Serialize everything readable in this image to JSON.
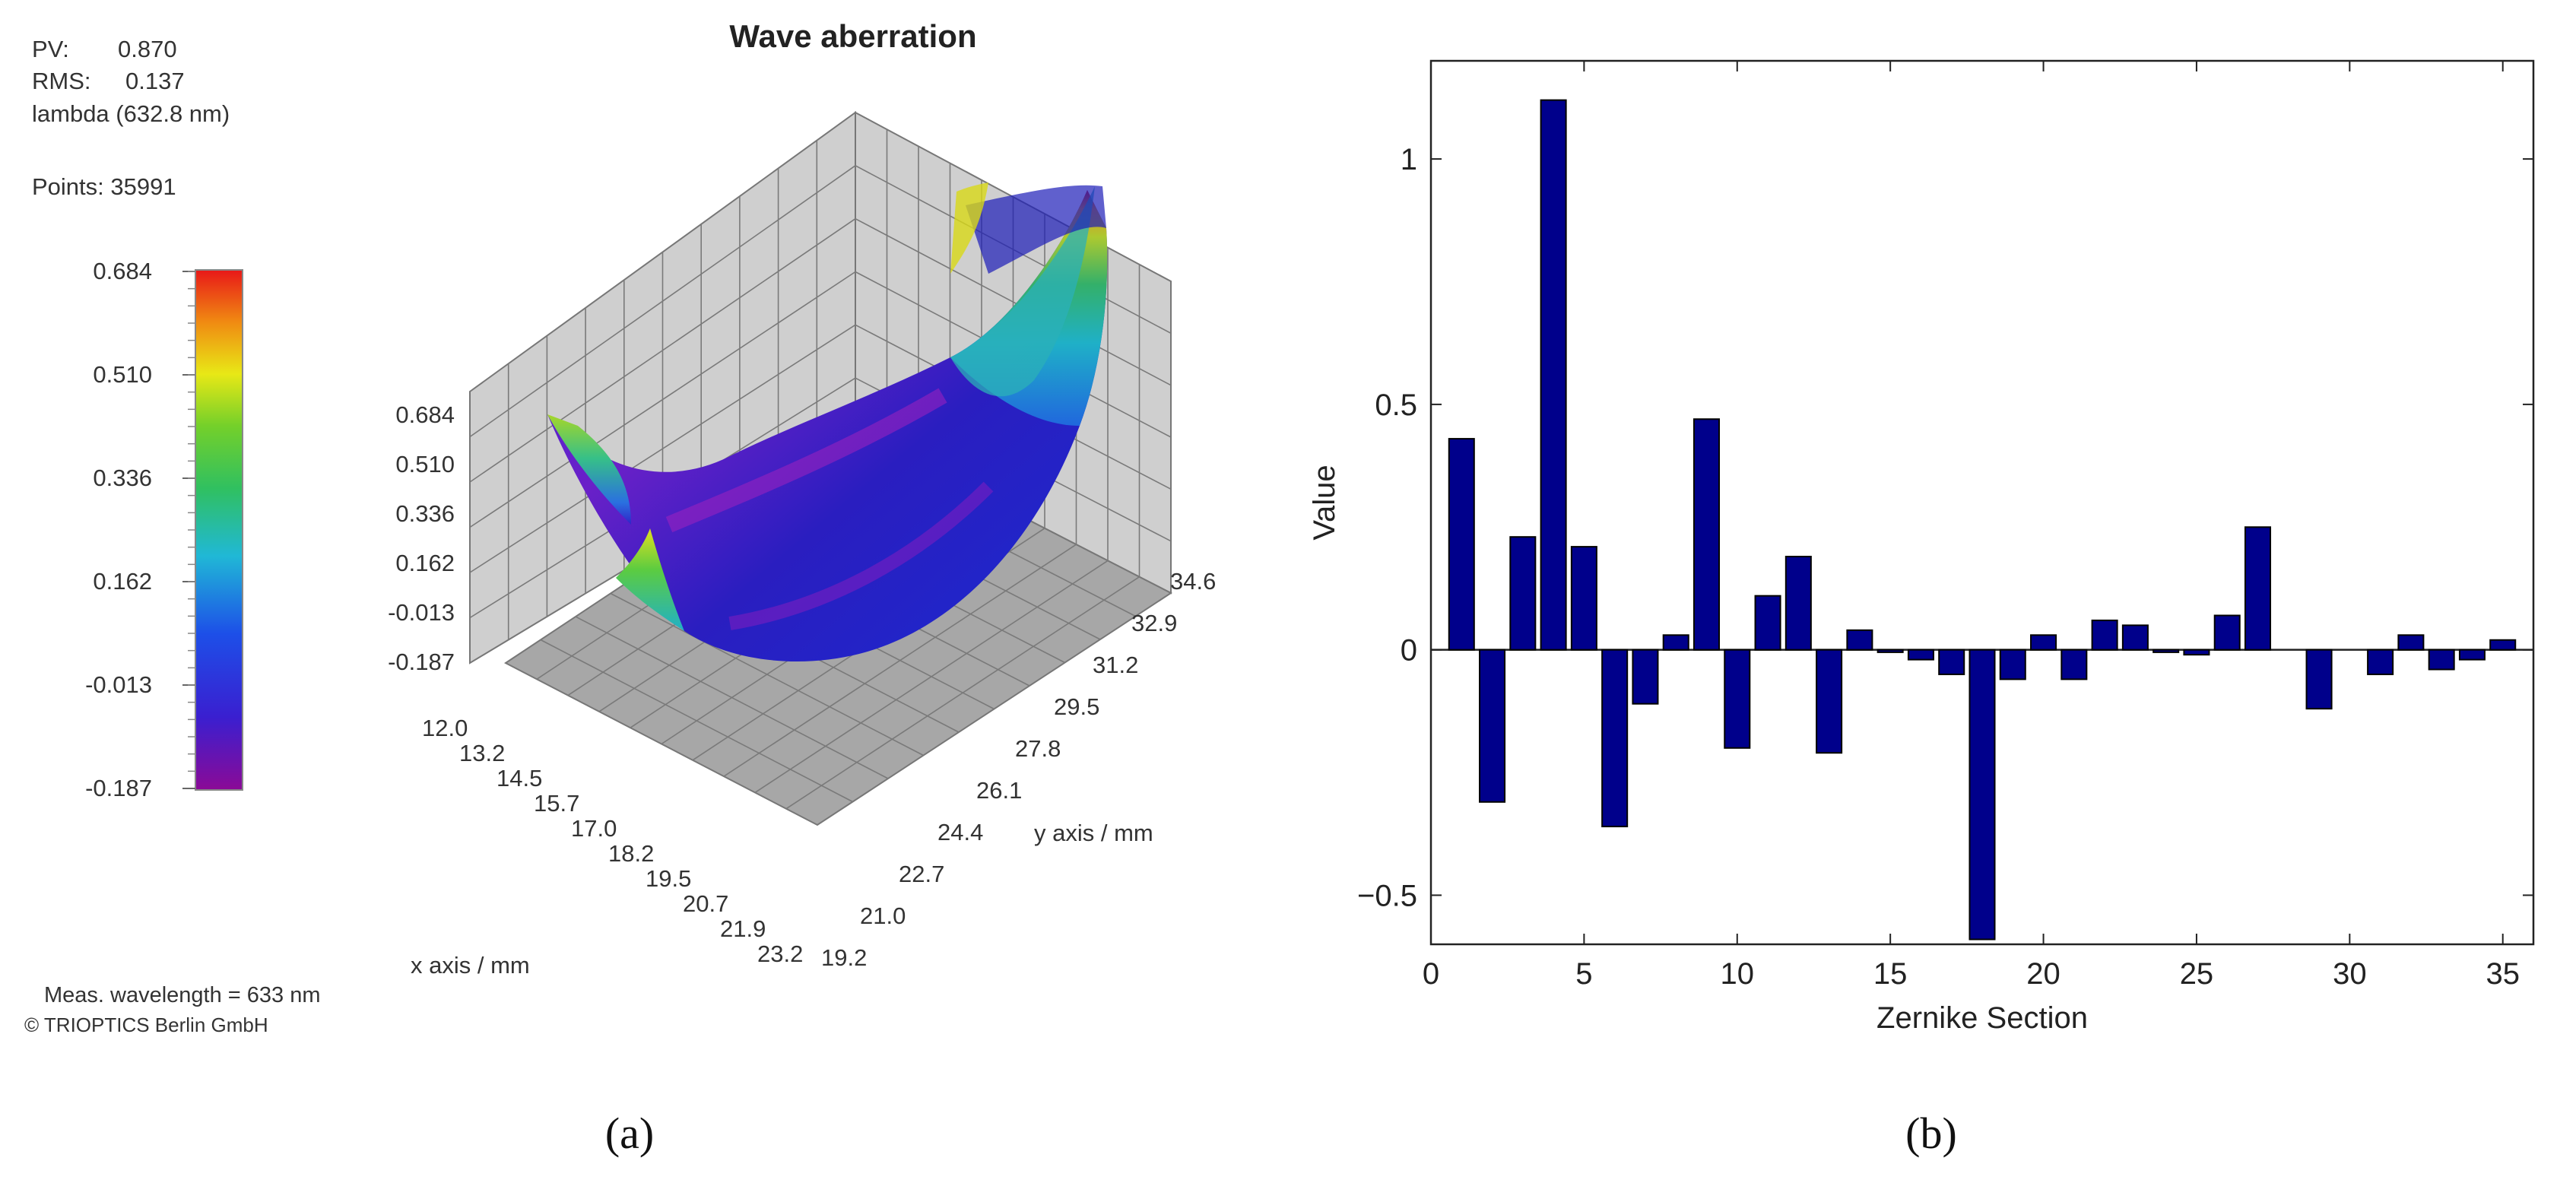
{
  "panel_a": {
    "info": {
      "pv_label": "PV:",
      "pv_value": "0.870",
      "rms_label": "RMS:",
      "rms_value": "0.137",
      "unit": "lambda (632.8 nm)",
      "points": "Points: 35991"
    },
    "colorbar": {
      "ticks": [
        "0.684",
        "0.510",
        "0.336",
        "0.162",
        "-0.013",
        "-0.187"
      ],
      "colors": [
        "#8b0a96",
        "#3a1fd0",
        "#1d4fe8",
        "#20b8d6",
        "#30c060",
        "#74d02a",
        "#e8e816",
        "#f08a12",
        "#e81818"
      ]
    },
    "chart_data": {
      "type": "surface3d",
      "title": "Wave aberration",
      "z_ticks": [
        "0.684",
        "0.510",
        "0.336",
        "0.162",
        "-0.013",
        "-0.187"
      ],
      "x_ticks": [
        "12.0",
        "13.2",
        "14.5",
        "15.7",
        "17.0",
        "18.2",
        "19.5",
        "20.7",
        "21.9",
        "23.2"
      ],
      "y_ticks": [
        "19.2",
        "21.0",
        "22.7",
        "24.4",
        "26.1",
        "27.8",
        "29.5",
        "31.2",
        "32.9",
        "34.6"
      ],
      "xlabel": "x axis / mm",
      "ylabel": "y axis / mm",
      "zlim": [
        -0.187,
        0.684
      ]
    },
    "footer_wavelength": "Meas. wavelength = 633 nm",
    "footer_copyright": "© TRIOPTICS Berlin GmbH",
    "caption": "(a)"
  },
  "panel_b": {
    "chart_data": {
      "type": "bar",
      "xlabel": "Zernike Section",
      "ylabel": "Value",
      "xlim": [
        0,
        36
      ],
      "ylim": [
        -0.6,
        1.2
      ],
      "x_ticks": [
        0,
        5,
        10,
        15,
        20,
        25,
        30,
        35
      ],
      "y_ticks": [
        -0.5,
        0,
        0.5,
        1
      ],
      "y_tick_labels": [
        "−0.5",
        "0",
        "0.5",
        "1"
      ],
      "x": [
        1,
        2,
        3,
        4,
        5,
        6,
        7,
        8,
        9,
        10,
        11,
        12,
        13,
        14,
        15,
        16,
        17,
        18,
        19,
        20,
        21,
        22,
        23,
        24,
        25,
        26,
        27,
        28,
        29,
        30,
        31,
        32,
        33,
        34,
        35
      ],
      "values": [
        0.43,
        -0.31,
        0.23,
        1.12,
        0.21,
        -0.36,
        -0.11,
        0.03,
        0.47,
        -0.2,
        0.11,
        0.19,
        -0.21,
        0.04,
        -0.005,
        -0.02,
        -0.05,
        -0.59,
        -0.06,
        0.03,
        -0.06,
        0.06,
        0.05,
        -0.005,
        -0.01,
        0.07,
        0.25,
        0.0,
        -0.12,
        0.0,
        -0.05,
        0.03,
        -0.04,
        -0.02,
        0.02
      ],
      "bar_color": "#00008b"
    },
    "caption": "(b)"
  }
}
